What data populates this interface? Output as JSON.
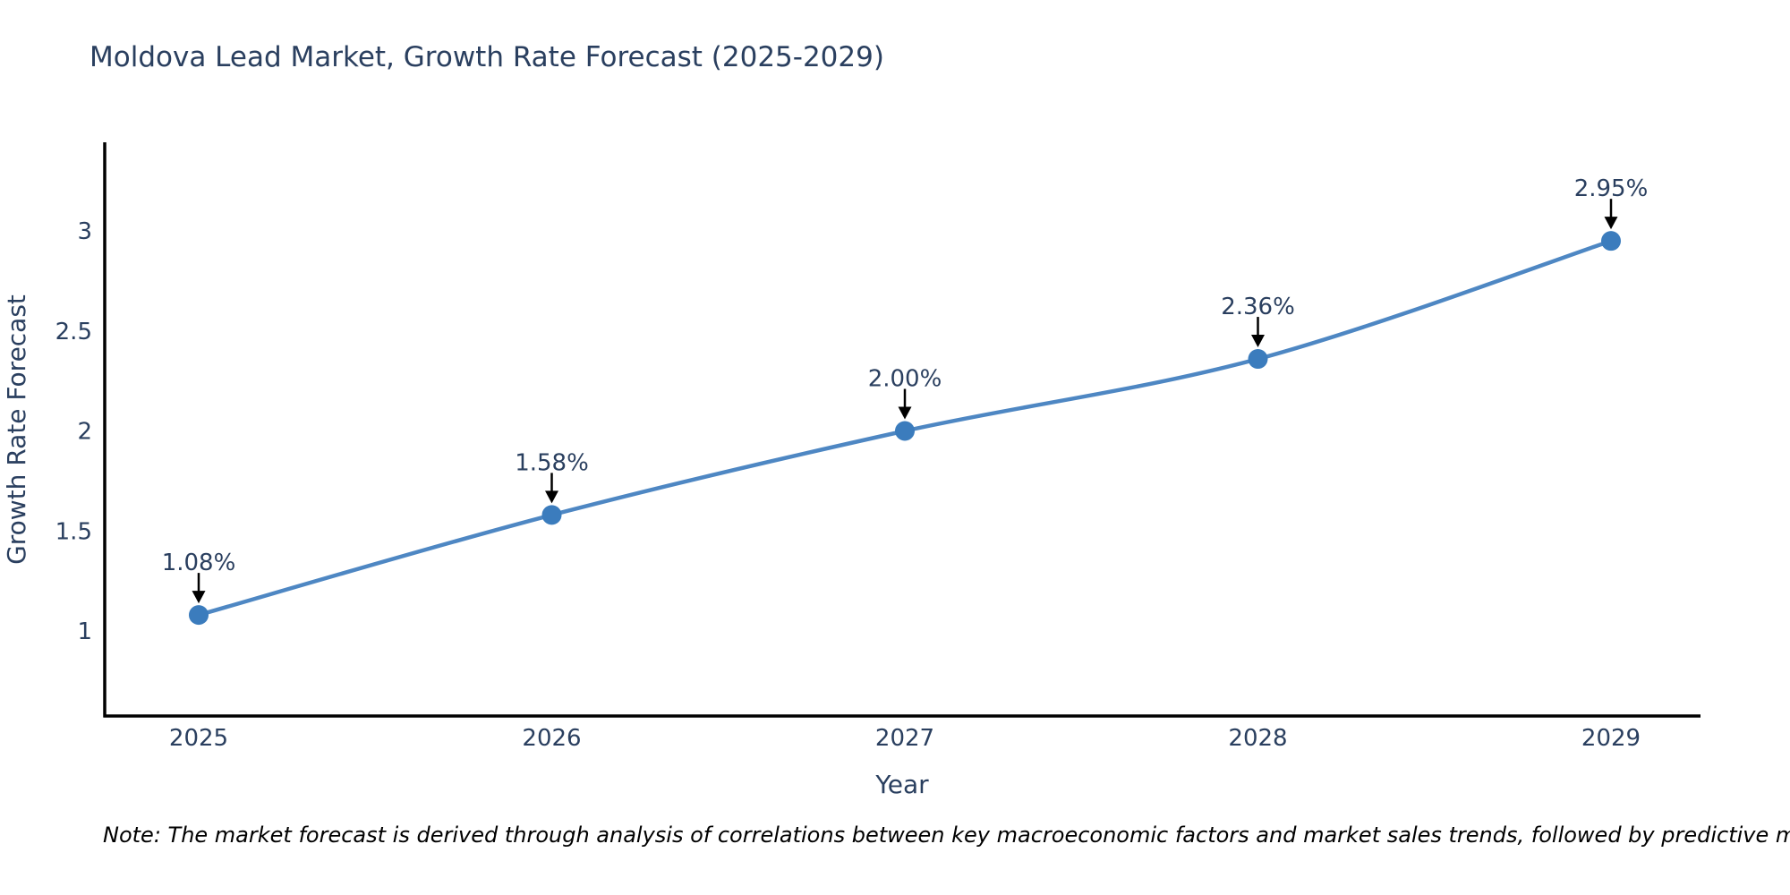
{
  "chart": {
    "colors": {
      "line": "#4e87c3",
      "marker": "#3b7cbd",
      "axis_line": "#000000",
      "text": "#2a3f5f",
      "arrow": "#000000",
      "note": "#000000",
      "background": "#ffffff"
    }
  },
  "chart_data": {
    "type": "line",
    "title": "Moldova Lead Market, Growth Rate Forecast (2025-2029)",
    "xlabel": "Year",
    "ylabel": "Growth Rate Forecast",
    "categories": [
      "2025",
      "2026",
      "2027",
      "2028",
      "2029"
    ],
    "values": [
      1.08,
      1.58,
      2.0,
      2.36,
      2.95
    ],
    "point_labels": [
      "1.08%",
      "1.58%",
      "2.00%",
      "2.36%",
      "2.95%"
    ],
    "series_name": "Growth Rate Forecast",
    "yticks": [
      1,
      1.5,
      2,
      2.5,
      3
    ],
    "ytick_labels": [
      "1",
      "1.5",
      "2",
      "2.5",
      "3"
    ],
    "ylim": [
      0.575,
      3.443
    ],
    "grid": false,
    "legend_position": "none",
    "line_shape": "spline",
    "markers": true,
    "annotations_style": "value label with downward black arrow at each point",
    "note": "Note: The market forecast is derived through analysis of correlations between key macroeconomic factors and market sales trends, followed by predictive modeling to project future sales"
  }
}
